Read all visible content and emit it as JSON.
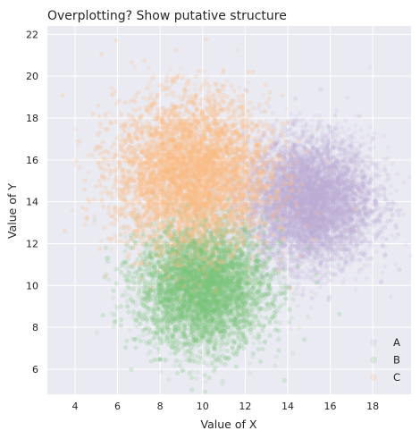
{
  "chart_data": {
    "type": "scatter",
    "title": "Overplotting? Show putative structure",
    "xlabel": "Value of X",
    "ylabel": "Value of Y",
    "xlim": [
      2.7,
      19.8
    ],
    "ylim": [
      4.8,
      22.4
    ],
    "xticks": [
      4,
      6,
      8,
      10,
      12,
      14,
      16,
      18
    ],
    "yticks": [
      6,
      8,
      10,
      12,
      14,
      16,
      18,
      20,
      22
    ],
    "grid": true,
    "legend_placement": "bottom-right",
    "series": [
      {
        "name": "A",
        "color": "#beaed4",
        "center": [
          15,
          14
        ],
        "std": [
          1.5,
          1.5
        ],
        "n": 8000
      },
      {
        "name": "B",
        "color": "#7fc97f",
        "center": [
          10,
          10
        ],
        "std": [
          1.5,
          1.5
        ],
        "n": 8000
      },
      {
        "name": "C",
        "color": "#fdc086",
        "center": [
          9.5,
          15.3
        ],
        "std": [
          1.8,
          1.8
        ],
        "n": 9000
      }
    ]
  },
  "colors": {
    "plot_background": "#eaeaf2",
    "grid": "#ffffff",
    "text": "#262626"
  }
}
